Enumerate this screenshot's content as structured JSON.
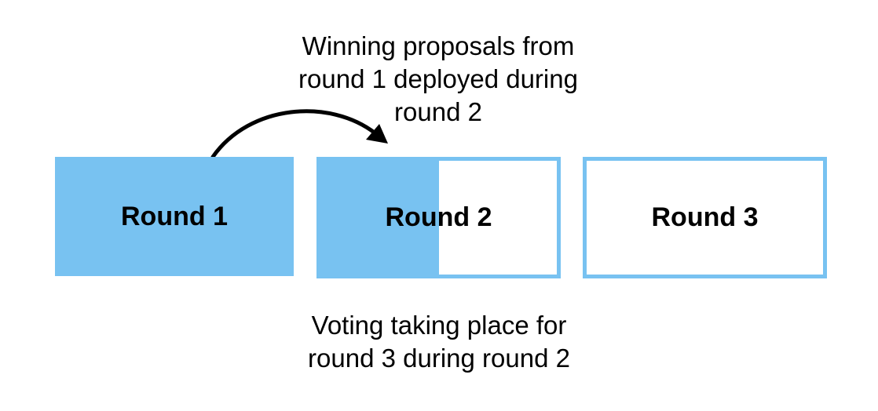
{
  "top_caption": {
    "lines": [
      "Winning proposals from",
      "round 1 deployed during",
      "round 2"
    ]
  },
  "bottom_caption": {
    "lines": [
      "Voting taking place for",
      "round 3 during round 2"
    ]
  },
  "rounds": [
    {
      "label": "Round 1",
      "fill_fraction": 1.0
    },
    {
      "label": "Round 2",
      "fill_fraction": 0.5
    },
    {
      "label": "Round 3",
      "fill_fraction": 0.0
    }
  ],
  "colors": {
    "accent": "#78c2f1",
    "arrow": "#000000",
    "text": "#000000"
  }
}
